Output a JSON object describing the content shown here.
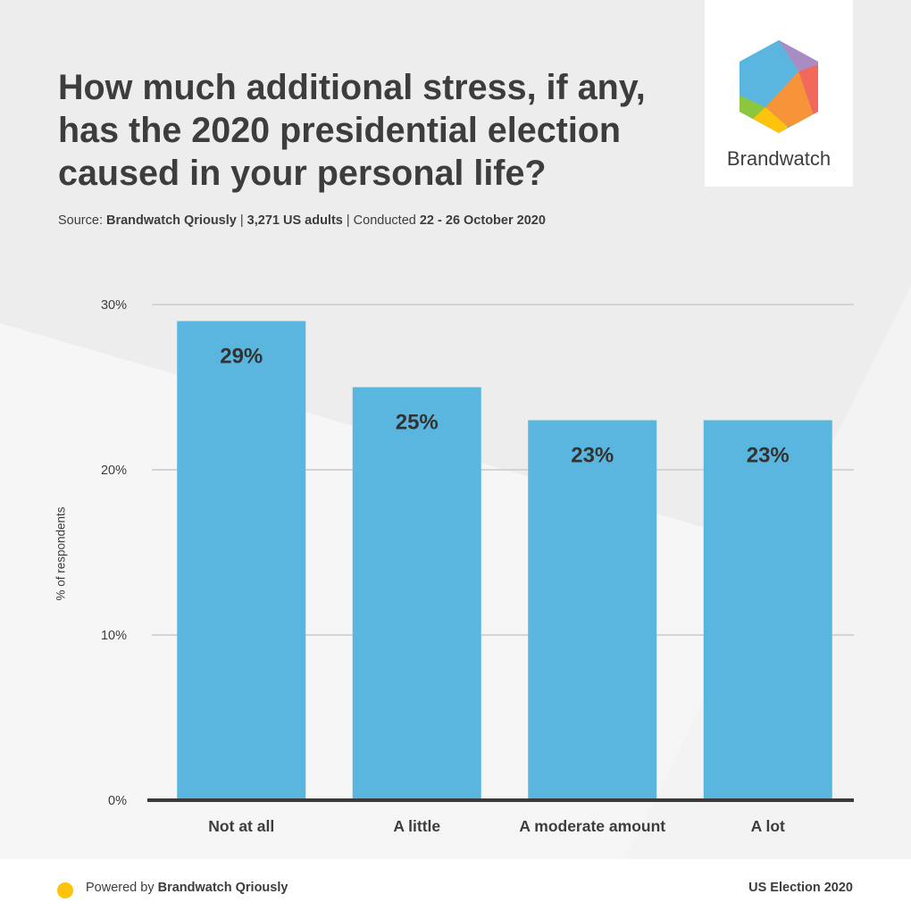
{
  "title": "How much additional stress, if any, has the 2020 presidential election caused in your personal life?",
  "source": {
    "prefix": "Source: ",
    "org": "Brandwatch Qriously",
    "sep1": " | ",
    "sample": "3,271 US adults",
    "sep2": " | Conducted ",
    "dates": "22 - 26 October 2020"
  },
  "brand": {
    "name": "Brandwatch"
  },
  "footer": {
    "powered_prefix": "Powered by ",
    "powered_by": "Brandwatch Qriously",
    "tag": "US Election 2020"
  },
  "colors": {
    "bar": "#5ab6de",
    "grid": "#d4d4d4",
    "axis": "#3a3a3a",
    "dot": "#fec40d"
  },
  "chart_data": {
    "type": "bar",
    "title": "How much additional stress, if any, has the 2020 presidential election caused in your personal life?",
    "xlabel": "",
    "ylabel": "% of respondents",
    "categories": [
      "Not at all",
      "A little",
      "A moderate amount",
      "A lot"
    ],
    "values": [
      29,
      25,
      23,
      23
    ],
    "value_labels": [
      "29%",
      "25%",
      "23%",
      "23%"
    ],
    "yticks": [
      0,
      10,
      20,
      30
    ],
    "ytick_labels": [
      "0%",
      "10%",
      "20%",
      "30%"
    ],
    "ylim": [
      0,
      30
    ],
    "grid": true
  }
}
